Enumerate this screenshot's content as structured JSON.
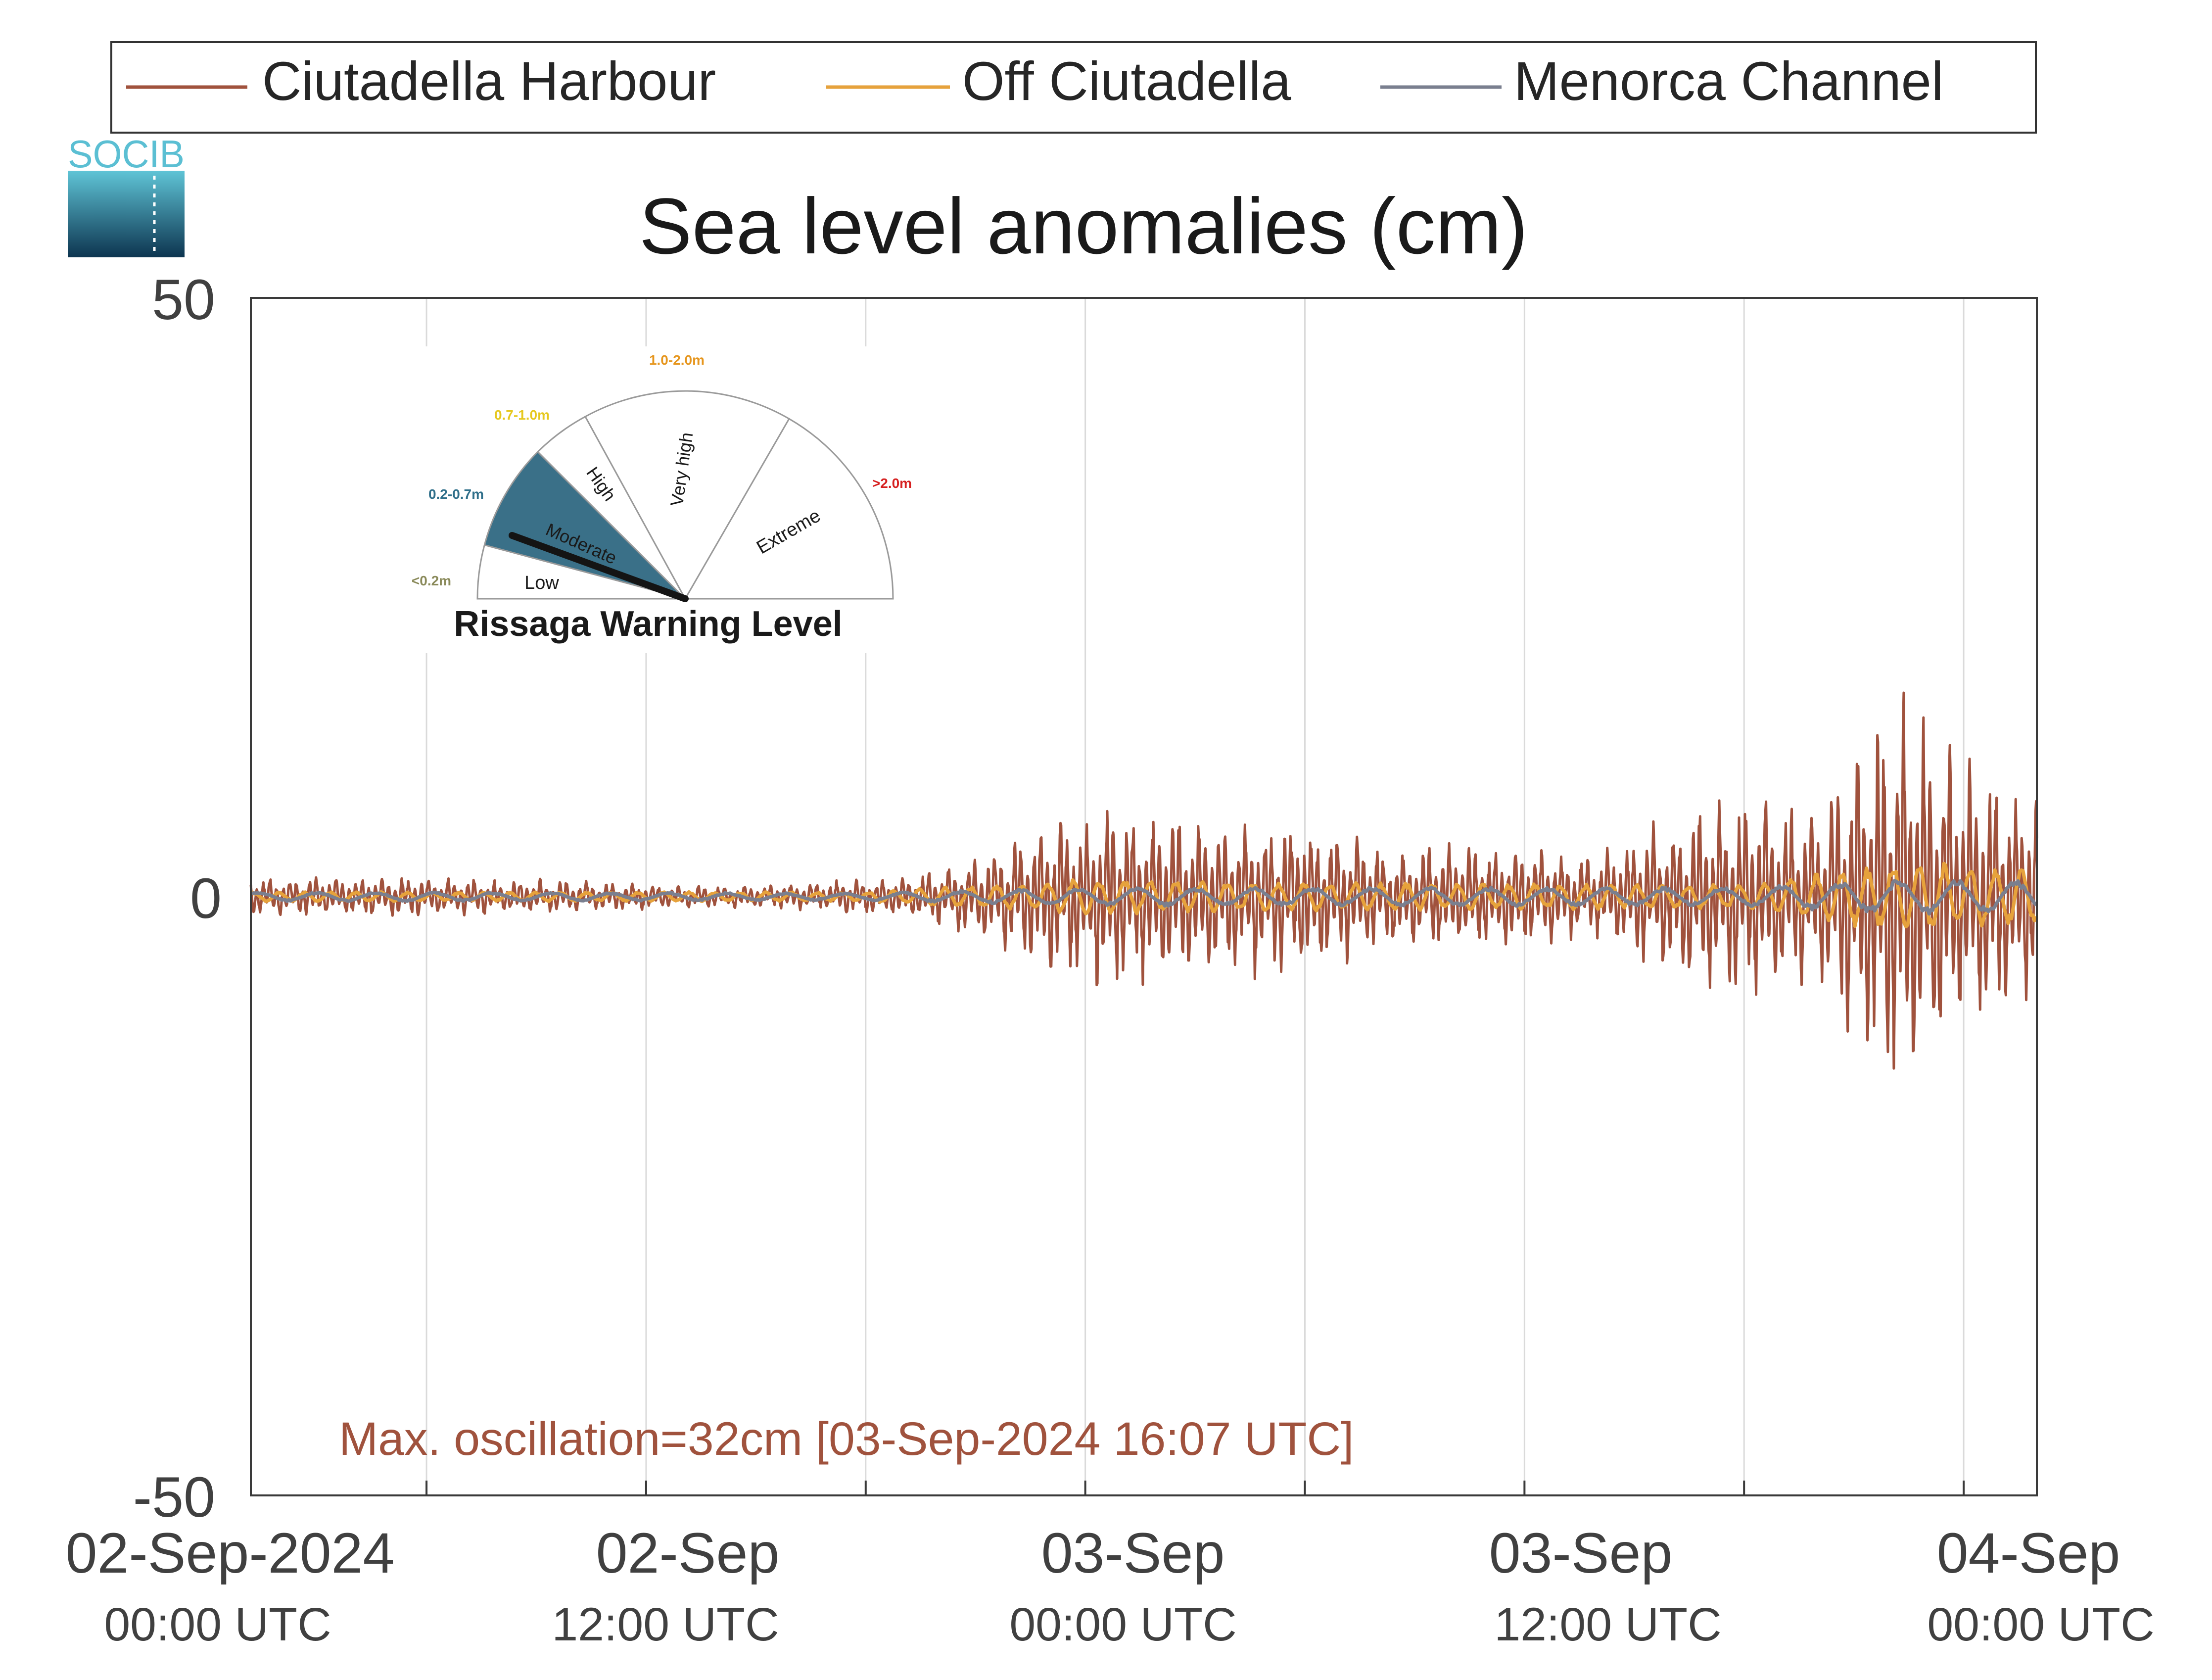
{
  "logo_text": "SOCIB",
  "legend": {
    "items": [
      {
        "label": "Ciutadella Harbour",
        "color": "#a0523d"
      },
      {
        "label": "Off Ciutadella",
        "color": "#e6a23c"
      },
      {
        "label": "Menorca Channel",
        "color": "#7a7f8f"
      }
    ]
  },
  "chart_data": {
    "type": "line",
    "title": "Sea level anomalies (cm)",
    "xlabel": "",
    "ylabel": "",
    "ylim": [
      -50,
      50
    ],
    "xlim_hours_from_02sep_0000utc": [
      -4.8,
      44
    ],
    "yticks": [
      "50",
      "0",
      "-50"
    ],
    "xticks": [
      {
        "date": "02-Sep-2024",
        "time": "00:00 UTC"
      },
      {
        "date": "02-Sep",
        "time": "12:00 UTC"
      },
      {
        "date": "03-Sep",
        "time": "00:00 UTC"
      },
      {
        "date": "03-Sep",
        "time": "12:00 UTC"
      },
      {
        "date": "04-Sep",
        "time": "00:00 UTC"
      }
    ],
    "grid": "vertical",
    "legend_position": "top",
    "series": [
      {
        "name": "Ciutadella Harbour",
        "color": "#a0523d",
        "envelope_x": [
          "02-Sep 00:00",
          "02-Sep 04:00",
          "02-Sep 07:00",
          "02-Sep 10:00",
          "02-Sep 13:00",
          "02-Sep 15:00",
          "02-Sep 17:00",
          "02-Sep 19:00",
          "02-Sep 21:00",
          "03-Sep 00:00",
          "03-Sep 02:00",
          "03-Sep 04:00",
          "03-Sep 06:00",
          "03-Sep 08:00",
          "03-Sep 10:00",
          "03-Sep 12:00",
          "03-Sep 14:00",
          "03-Sep 16:07",
          "03-Sep 18:00",
          "03-Sep 20:00",
          "03-Sep 22:00",
          "04-Sep 00:00"
        ],
        "envelope_amplitude_cm": [
          1.5,
          1.2,
          0.8,
          1.0,
          1.5,
          3,
          6,
          7,
          6,
          6,
          4,
          4,
          4,
          3,
          6,
          8,
          6,
          16,
          10,
          8,
          10,
          12
        ]
      },
      {
        "name": "Off Ciutadella",
        "color": "#e6a23c",
        "envelope_x": [
          "02-Sep 00:00",
          "02-Sep 12:00",
          "02-Sep 18:00",
          "03-Sep 00:00",
          "03-Sep 12:00",
          "03-Sep 16:00",
          "04-Sep 00:00"
        ],
        "envelope_amplitude_cm": [
          0.4,
          0.4,
          1.5,
          1.2,
          1.0,
          3.0,
          2.0
        ]
      },
      {
        "name": "Menorca Channel",
        "color": "#7a7f8f",
        "envelope_x": [
          "02-Sep 00:00",
          "02-Sep 12:00",
          "02-Sep 18:00",
          "03-Sep 00:00",
          "03-Sep 12:00",
          "03-Sep 16:00",
          "04-Sep 00:00"
        ],
        "envelope_amplitude_cm": [
          0.4,
          0.3,
          0.8,
          0.8,
          0.8,
          1.5,
          1.2
        ]
      }
    ],
    "annotation": "Max. oscillation=32cm [03-Sep-2024 16:07 UTC]",
    "annotation_color": "#a0523d"
  },
  "gauge": {
    "title": "Rissaga Warning Level",
    "current_level": "Moderate",
    "sectors": [
      {
        "name": "Low",
        "range": "<0.2m",
        "range_color": "#8a8a5a"
      },
      {
        "name": "Moderate",
        "range": "0.2-0.7m",
        "range_color": "#2f6f8a",
        "fill": "#3a7088"
      },
      {
        "name": "High",
        "range": "0.7-1.0m",
        "range_color": "#e6c81e"
      },
      {
        "name": "Very high",
        "range": "1.0-2.0m",
        "range_color": "#e6961e"
      },
      {
        "name": "Extreme",
        "range": ">2.0m",
        "range_color": "#d62020"
      }
    ]
  }
}
